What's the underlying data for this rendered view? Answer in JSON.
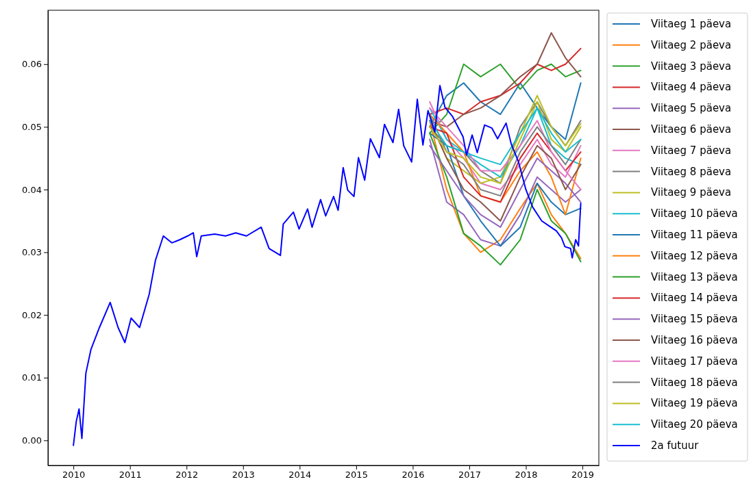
{
  "chart_data": {
    "type": "line",
    "xlim": [
      2009.55,
      2019.29
    ],
    "xticks": [
      2010,
      2011,
      2012,
      2013,
      2014,
      2015,
      2016,
      2017,
      2018,
      2019
    ],
    "ylim": [
      -0.004,
      0.0686
    ],
    "yticks": [
      {
        "value": 0,
        "label": "0.00"
      },
      {
        "value": 0.01,
        "label": "0.01"
      },
      {
        "value": 0.02,
        "label": "0.02"
      },
      {
        "value": 0.03,
        "label": "0.03"
      },
      {
        "value": 0.04,
        "label": "0.04"
      },
      {
        "value": 0.05,
        "label": "0.05"
      },
      {
        "value": 0.06,
        "label": "0.06"
      }
    ],
    "grid": false,
    "legend": "right",
    "series": [
      {
        "name": "Viitaeg 1 päeva",
        "color": "#1f77b4",
        "x": [
          2016.3,
          2016.6,
          2016.9,
          2017.2,
          2017.55,
          2017.9,
          2018.2,
          2018.45,
          2018.7,
          2018.97
        ],
        "values": [
          0.05,
          0.055,
          0.057,
          0.054,
          0.052,
          0.057,
          0.053,
          0.05,
          0.048,
          0.057
        ]
      },
      {
        "name": "Viitaeg 2 päeva",
        "color": "#ff7f0e",
        "x": [
          2016.3,
          2016.6,
          2016.9,
          2017.2,
          2017.55,
          2017.9,
          2018.2,
          2018.45,
          2018.7,
          2018.97
        ],
        "values": [
          0.051,
          0.04,
          0.033,
          0.03,
          0.032,
          0.037,
          0.041,
          0.036,
          0.033,
          0.029
        ]
      },
      {
        "name": "Viitaeg 3 päeva",
        "color": "#2ca02c",
        "x": [
          2016.3,
          2016.6,
          2016.9,
          2017.2,
          2017.55,
          2017.9,
          2018.2,
          2018.45,
          2018.7,
          2018.97
        ],
        "values": [
          0.049,
          0.052,
          0.06,
          0.058,
          0.06,
          0.056,
          0.059,
          0.06,
          0.058,
          0.059
        ]
      },
      {
        "name": "Viitaeg 4 päeva",
        "color": "#d62728",
        "x": [
          2016.3,
          2016.6,
          2016.9,
          2017.2,
          2017.55,
          2017.9,
          2018.2,
          2018.45,
          2018.7,
          2018.97
        ],
        "values": [
          0.052,
          0.053,
          0.052,
          0.054,
          0.055,
          0.057,
          0.06,
          0.059,
          0.06,
          0.0625
        ]
      },
      {
        "name": "Viitaeg 5 päeva",
        "color": "#9467bd",
        "x": [
          2016.3,
          2016.6,
          2016.9,
          2017.2,
          2017.55,
          2017.9,
          2018.2,
          2018.45,
          2018.7,
          2018.97
        ],
        "values": [
          0.048,
          0.038,
          0.036,
          0.032,
          0.031,
          0.036,
          0.042,
          0.04,
          0.038,
          0.04
        ]
      },
      {
        "name": "Viitaeg 6 päeva",
        "color": "#8c564b",
        "x": [
          2016.3,
          2016.6,
          2016.9,
          2017.2,
          2017.55,
          2017.9,
          2018.2,
          2018.45,
          2018.7,
          2018.97
        ],
        "values": [
          0.051,
          0.05,
          0.052,
          0.053,
          0.055,
          0.058,
          0.06,
          0.065,
          0.061,
          0.058
        ]
      },
      {
        "name": "Viitaeg 7 päeva",
        "color": "#e377c2",
        "x": [
          2016.3,
          2016.6,
          2016.9,
          2017.2,
          2017.55,
          2017.9,
          2018.2,
          2018.45,
          2018.7,
          2018.97
        ],
        "values": [
          0.054,
          0.048,
          0.045,
          0.041,
          0.04,
          0.044,
          0.048,
          0.044,
          0.042,
          0.047
        ]
      },
      {
        "name": "Viitaeg 8 päeva",
        "color": "#7f7f7f",
        "x": [
          2016.3,
          2016.6,
          2016.9,
          2017.2,
          2017.55,
          2017.9,
          2018.2,
          2018.45,
          2018.7,
          2018.97
        ],
        "values": [
          0.05,
          0.047,
          0.046,
          0.043,
          0.041,
          0.05,
          0.054,
          0.05,
          0.047,
          0.051
        ]
      },
      {
        "name": "Viitaeg 9 päeva",
        "color": "#bcbd22",
        "x": [
          2016.3,
          2016.6,
          2016.9,
          2017.2,
          2017.55,
          2017.9,
          2018.2,
          2018.45,
          2018.7,
          2018.97
        ],
        "values": [
          0.051,
          0.045,
          0.043,
          0.041,
          0.042,
          0.049,
          0.055,
          0.05,
          0.047,
          0.0505
        ]
      },
      {
        "name": "Viitaeg 10 päeva",
        "color": "#17becf",
        "x": [
          2016.3,
          2016.6,
          2016.9,
          2017.2,
          2017.55,
          2017.9,
          2018.2,
          2018.45,
          2018.7,
          2018.97
        ],
        "values": [
          0.053,
          0.048,
          0.046,
          0.044,
          0.042,
          0.047,
          0.053,
          0.047,
          0.045,
          0.044
        ]
      },
      {
        "name": "Viitaeg 11 päeva",
        "color": "#1f77b4",
        "x": [
          2016.3,
          2016.6,
          2016.9,
          2017.2,
          2017.55,
          2017.9,
          2018.2,
          2018.45,
          2018.7,
          2018.97
        ],
        "values": [
          0.049,
          0.047,
          0.039,
          0.035,
          0.031,
          0.034,
          0.041,
          0.038,
          0.036,
          0.037
        ]
      },
      {
        "name": "Viitaeg 12 päeva",
        "color": "#ff7f0e",
        "x": [
          2016.3,
          2016.6,
          2016.9,
          2017.2,
          2017.55,
          2017.9,
          2018.2,
          2018.45,
          2018.7,
          2018.97
        ],
        "values": [
          0.052,
          0.049,
          0.046,
          0.039,
          0.038,
          0.043,
          0.046,
          0.042,
          0.036,
          0.045
        ]
      },
      {
        "name": "Viitaeg 13 päeva",
        "color": "#2ca02c",
        "x": [
          2016.3,
          2016.6,
          2016.9,
          2017.2,
          2017.55,
          2017.9,
          2018.2,
          2018.45,
          2018.7,
          2018.97
        ],
        "values": [
          0.049,
          0.042,
          0.033,
          0.031,
          0.028,
          0.032,
          0.04,
          0.035,
          0.033,
          0.0285
        ]
      },
      {
        "name": "Viitaeg 14 päeva",
        "color": "#d62728",
        "x": [
          2016.3,
          2016.6,
          2016.9,
          2017.2,
          2017.55,
          2017.9,
          2018.2,
          2018.45,
          2018.7,
          2018.97
        ],
        "values": [
          0.05,
          0.049,
          0.042,
          0.039,
          0.038,
          0.045,
          0.049,
          0.046,
          0.043,
          0.046
        ]
      },
      {
        "name": "Viitaeg 15 päeva",
        "color": "#9467bd",
        "x": [
          2016.3,
          2016.6,
          2016.9,
          2017.2,
          2017.55,
          2017.9,
          2018.2,
          2018.45,
          2018.7,
          2018.97
        ],
        "values": [
          0.047,
          0.043,
          0.039,
          0.036,
          0.034,
          0.04,
          0.045,
          0.043,
          0.041,
          0.038
        ]
      },
      {
        "name": "Viitaeg 16 päeva",
        "color": "#8c564b",
        "x": [
          2016.3,
          2016.6,
          2016.9,
          2017.2,
          2017.55,
          2017.9,
          2018.2,
          2018.45,
          2018.7,
          2018.97
        ],
        "values": [
          0.051,
          0.045,
          0.04,
          0.038,
          0.035,
          0.042,
          0.047,
          0.045,
          0.04,
          0.044
        ]
      },
      {
        "name": "Viitaeg 17 päeva",
        "color": "#e377c2",
        "x": [
          2016.3,
          2016.6,
          2016.9,
          2017.2,
          2017.55,
          2017.9,
          2018.2,
          2018.45,
          2018.7,
          2018.97
        ],
        "values": [
          0.053,
          0.05,
          0.047,
          0.043,
          0.043,
          0.047,
          0.051,
          0.046,
          0.043,
          0.04
        ]
      },
      {
        "name": "Viitaeg 18 päeva",
        "color": "#7f7f7f",
        "x": [
          2016.3,
          2016.6,
          2016.9,
          2017.2,
          2017.55,
          2017.9,
          2018.2,
          2018.45,
          2018.7,
          2018.97
        ],
        "values": [
          0.052,
          0.046,
          0.044,
          0.04,
          0.039,
          0.046,
          0.05,
          0.047,
          0.044,
          0.048
        ]
      },
      {
        "name": "Viitaeg 19 päeva",
        "color": "#bcbd22",
        "x": [
          2016.3,
          2016.6,
          2016.9,
          2017.2,
          2017.55,
          2017.9,
          2018.2,
          2018.45,
          2018.7,
          2018.97
        ],
        "values": [
          0.05,
          0.046,
          0.045,
          0.042,
          0.041,
          0.048,
          0.054,
          0.048,
          0.046,
          0.05
        ]
      },
      {
        "name": "Viitaeg 20 päeva",
        "color": "#17becf",
        "x": [
          2016.3,
          2016.6,
          2016.9,
          2017.2,
          2017.55,
          2017.9,
          2018.2,
          2018.45,
          2018.7,
          2018.97
        ],
        "values": [
          0.051,
          0.047,
          0.046,
          0.045,
          0.044,
          0.049,
          0.053,
          0.049,
          0.046,
          0.048
        ]
      },
      {
        "name": "2a futuur",
        "color": "#0000ff",
        "x": [
          2010.0,
          2010.05,
          2010.1,
          2010.15,
          2010.22,
          2010.31,
          2010.46,
          2010.65,
          2010.79,
          2010.91,
          2011.02,
          2011.17,
          2011.34,
          2011.45,
          2011.59,
          2011.74,
          2011.88,
          2012.02,
          2012.12,
          2012.18,
          2012.26,
          2012.5,
          2012.69,
          2012.87,
          2013.06,
          2013.32,
          2013.46,
          2013.66,
          2013.71,
          2013.89,
          2013.99,
          2014.14,
          2014.22,
          2014.37,
          2014.46,
          2014.6,
          2014.68,
          2014.77,
          2014.85,
          2014.96,
          2015.04,
          2015.15,
          2015.25,
          2015.41,
          2015.5,
          2015.65,
          2015.75,
          2015.84,
          2015.98,
          2016.08,
          2016.18,
          2016.27,
          2016.39,
          2016.48,
          2016.57,
          2016.7,
          2016.89,
          2016.95,
          2017.05,
          2017.14,
          2017.27,
          2017.4,
          2017.5,
          2017.65,
          2017.74,
          2017.87,
          2018.0,
          2018.12,
          2018.28,
          2018.41,
          2018.54,
          2018.63,
          2018.69,
          2018.79,
          2018.82,
          2018.88,
          2018.93,
          2018.97
        ],
        "values": [
          -0.0008,
          0.003,
          0.005,
          0.0003,
          0.0107,
          0.0145,
          0.018,
          0.022,
          0.018,
          0.0156,
          0.0195,
          0.018,
          0.0233,
          0.0287,
          0.0326,
          0.0315,
          0.032,
          0.0326,
          0.0331,
          0.0293,
          0.0326,
          0.0329,
          0.0326,
          0.0331,
          0.0326,
          0.034,
          0.0306,
          0.0295,
          0.0345,
          0.0364,
          0.0337,
          0.0369,
          0.034,
          0.0384,
          0.0358,
          0.0389,
          0.0367,
          0.0435,
          0.0399,
          0.0389,
          0.0451,
          0.0415,
          0.0481,
          0.0451,
          0.0504,
          0.0475,
          0.0528,
          0.047,
          0.0444,
          0.0544,
          0.0471,
          0.0526,
          0.0492,
          0.0566,
          0.0531,
          0.0517,
          0.0484,
          0.0455,
          0.0487,
          0.0459,
          0.0503,
          0.0498,
          0.0481,
          0.0506,
          0.0473,
          0.0444,
          0.04,
          0.0372,
          0.035,
          0.0342,
          0.0334,
          0.0323,
          0.0309,
          0.0306,
          0.0291,
          0.032,
          0.031,
          0.0378
        ]
      }
    ]
  }
}
